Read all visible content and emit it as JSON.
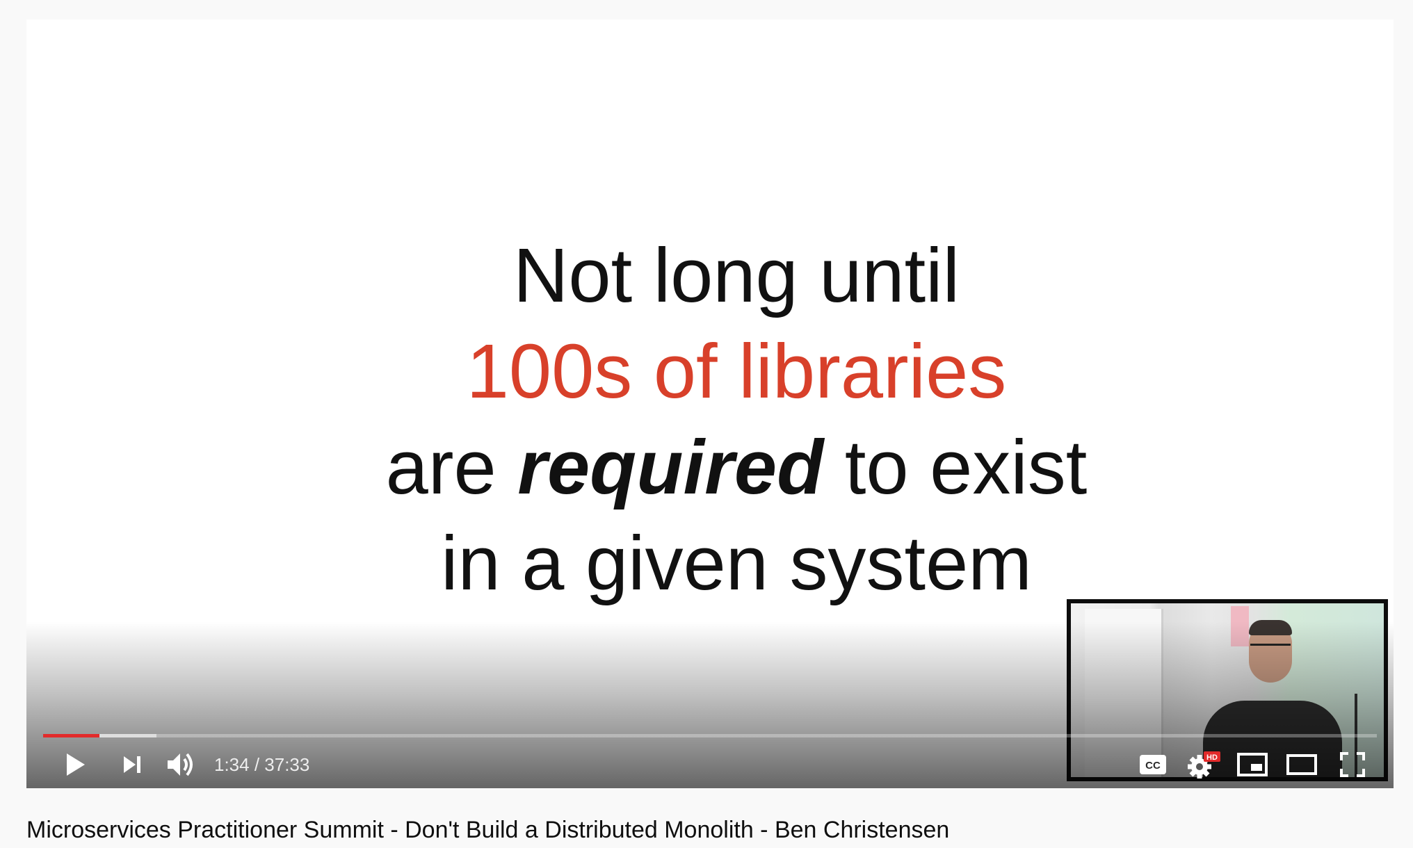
{
  "video": {
    "title": "Microservices Practitioner Summit - Don't Build a Distributed Monolith - Ben Christensen"
  },
  "slide": {
    "line1": "Not long until",
    "line2": "100s of libraries",
    "line3_pre": "are ",
    "line3_emph": "required",
    "line3_post": " to exist",
    "line4": "in a given system",
    "accent_color": "#d8402a"
  },
  "player": {
    "current_time": "1:34",
    "duration": "37:33",
    "time_display": "1:34 / 37:33",
    "progress_played_fraction": 0.042,
    "progress_buffered_fraction": 0.085,
    "progress_color": "#e22b2b",
    "hd_badge": "HD",
    "cc_label": "CC",
    "icons": {
      "play": "play-icon",
      "next": "next-icon",
      "volume": "volume-icon",
      "captions": "captions-icon",
      "settings": "settings-icon",
      "miniplayer": "miniplayer-icon",
      "theater": "theater-mode-icon",
      "fullscreen": "fullscreen-icon"
    }
  }
}
